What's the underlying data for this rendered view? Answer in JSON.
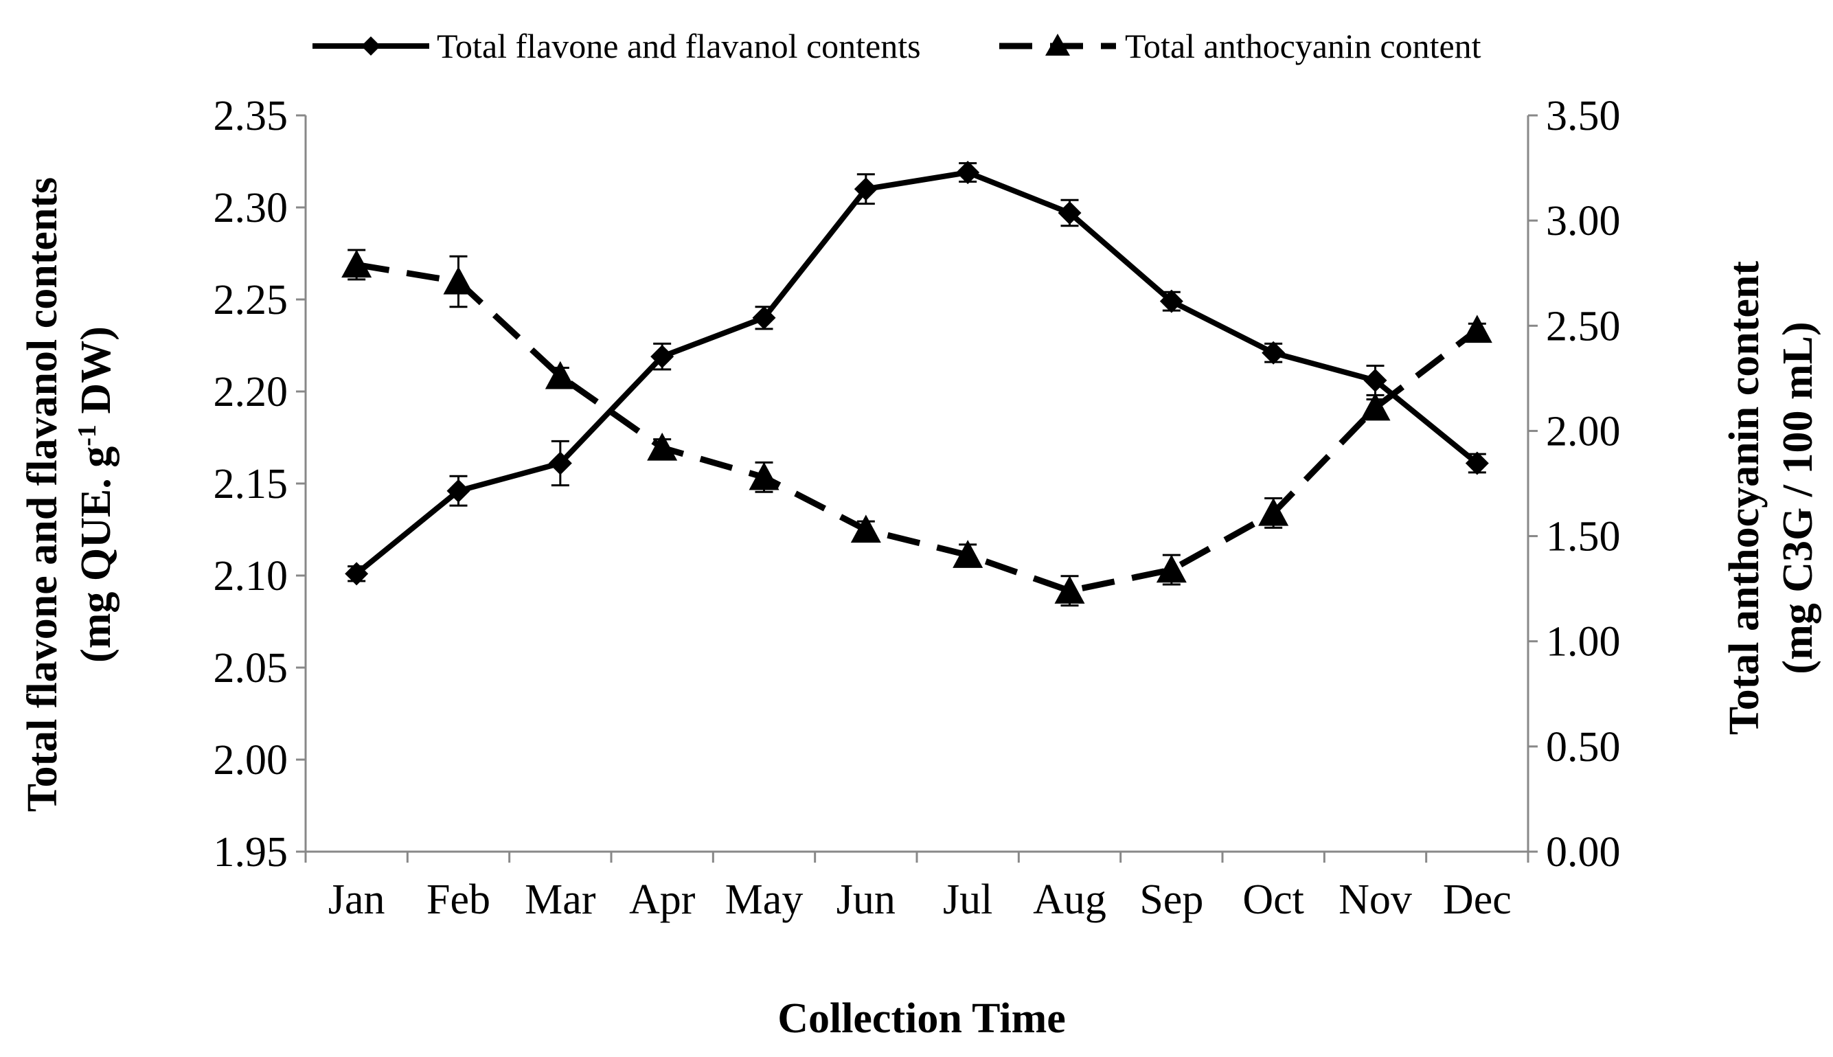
{
  "chart_data": {
    "type": "line",
    "title": "",
    "categories": [
      "Jan",
      "Feb",
      "Mar",
      "Apr",
      "May",
      "Jun",
      "Jul",
      "Aug",
      "Sep",
      "Oct",
      "Nov",
      "Dec"
    ],
    "xlabel": "Collection Time",
    "ylabel_left": {
      "line1": "Total flavone and flavanol contents",
      "line2_pre": "(mg QUE. g",
      "line2_sup": "-1",
      "line2_post": " DW)"
    },
    "ylabel_right": {
      "line1": "Total anthocyanin content",
      "line2": "(mg C3G / 100 mL)"
    },
    "y_left": {
      "min": 1.95,
      "max": 2.35,
      "ticks": [
        "1.95",
        "2.00",
        "2.05",
        "2.10",
        "2.15",
        "2.20",
        "2.25",
        "2.30",
        "2.35"
      ]
    },
    "y_right": {
      "min": 0,
      "max": 3.5,
      "ticks": [
        "0.00",
        "0.50",
        "1.00",
        "1.50",
        "2.00",
        "2.50",
        "3.00",
        "3.50"
      ]
    },
    "series": [
      {
        "name": "Total flavone and flavanol contents",
        "axis": "left",
        "marker": "diamond",
        "line_style": "solid",
        "color": "#000000",
        "values": [
          2.101,
          2.146,
          2.161,
          2.219,
          2.24,
          2.31,
          2.319,
          2.297,
          2.249,
          2.221,
          2.206,
          2.161
        ],
        "errors": [
          0.004,
          0.008,
          0.012,
          0.007,
          0.006,
          0.008,
          0.005,
          0.007,
          0.005,
          0.005,
          0.008,
          0.005
        ]
      },
      {
        "name": "Total anthocyanin content",
        "axis": "right",
        "marker": "triangle",
        "line_style": "dashed",
        "color": "#000000",
        "values": [
          2.79,
          2.71,
          2.26,
          1.92,
          1.78,
          1.53,
          1.41,
          1.24,
          1.34,
          1.61,
          2.11,
          2.48
        ],
        "errors": [
          0.07,
          0.12,
          0.04,
          0.04,
          0.07,
          0.04,
          0.05,
          0.07,
          0.07,
          0.07,
          0.04,
          0.03
        ]
      }
    ],
    "legend_position": "top-center",
    "grid": false
  }
}
